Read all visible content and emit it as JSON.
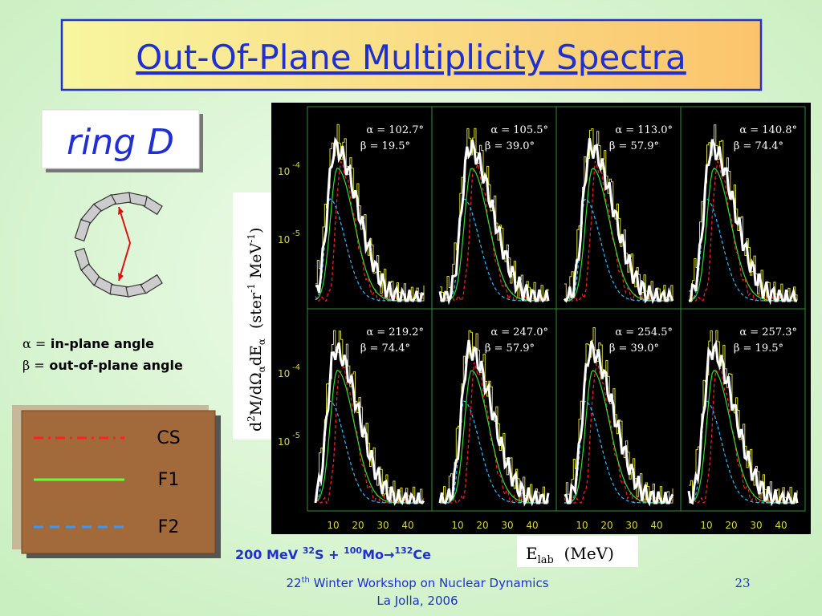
{
  "title": "Out-Of-Plane Multiplicity Spectra",
  "ring_label": "ring D",
  "definitions": [
    {
      "symbol": "α =",
      "text": "in-plane angle"
    },
    {
      "symbol": "β =",
      "text": "out-of-plane angle"
    }
  ],
  "legend": [
    "CS",
    "F1",
    "F2"
  ],
  "plot": {
    "y_label": [
      "d",
      "2",
      "M/dΩ",
      "α",
      "dE",
      "α",
      "  (ster",
      "-1",
      " MeV",
      "-1",
      ")"
    ],
    "x_label": [
      "E",
      "lab",
      "  (MeV)"
    ],
    "x_ticks": [
      "10",
      "20",
      "30",
      "40"
    ],
    "y_ticks": [
      {
        "base": "10",
        "exp": "-4"
      },
      {
        "base": "10",
        "exp": "-5"
      }
    ],
    "panels": [
      {
        "alpha": "α = 102.7°",
        "beta": "β = 19.5°"
      },
      {
        "alpha": "α = 105.5°",
        "beta": "β = 39.0°"
      },
      {
        "alpha": "α = 113.0°",
        "beta": "β = 57.9°"
      },
      {
        "alpha": "α = 140.8°",
        "beta": "β = 74.4°"
      },
      {
        "alpha": "α = 219.2°",
        "beta": "β = 74.4°"
      },
      {
        "alpha": "α = 247.0°",
        "beta": "β = 57.9°"
      },
      {
        "alpha": "α = 254.5°",
        "beta": "β = 39.0°"
      },
      {
        "alpha": "α = 257.3°",
        "beta": "β = 19.5°"
      }
    ]
  },
  "reaction": [
    "200 MeV ",
    "32",
    "S + ",
    "100",
    "Mo",
    "→",
    "132",
    "Ce"
  ],
  "footer": {
    "line1": [
      "22",
      "th",
      " Winter Workshop on Nuclear Dynamics"
    ],
    "line2": "La Jolla, 2006",
    "page": "23"
  }
}
